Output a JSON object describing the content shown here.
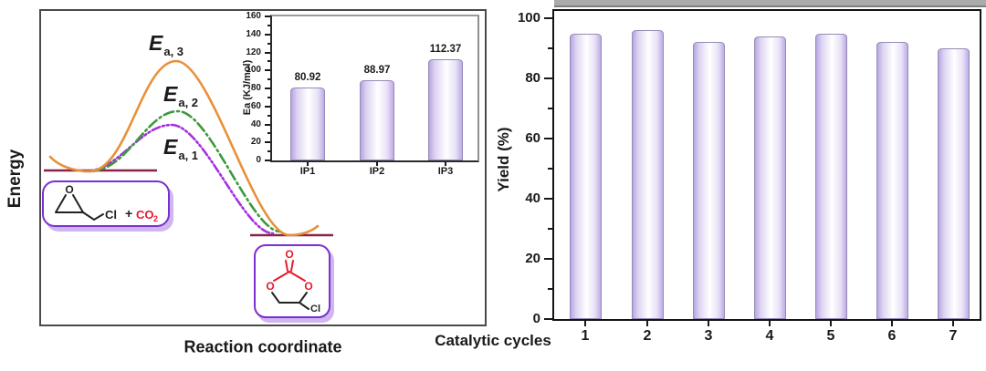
{
  "colors": {
    "orange_curve": "#e8913a",
    "green_curve": "#3c9a3c",
    "purple_curve": "#a431e0",
    "level_line": "#8b2346",
    "box_border": "#7b2fd2",
    "box_shadow": "#cfb6ee",
    "red_atom": "#e8192c",
    "bar_border": "#958cb5",
    "bar_fill_edge": "#b7a6e3",
    "gray_band": "#ababab"
  },
  "energy_diagram": {
    "y_axis_label": "Energy",
    "x_axis_label": "Reaction coordinate",
    "curves": [
      {
        "label_e": "E",
        "label_sub": "a, 1",
        "line_style": "dash-dot-dot"
      },
      {
        "label_e": "E",
        "label_sub": "a, 2",
        "line_style": "dash-dot"
      },
      {
        "label_e": "E",
        "label_sub": "a, 3",
        "line_style": "solid"
      }
    ],
    "reactant_box": {
      "atom_o": "O",
      "atom_cl": "Cl",
      "plus": "+",
      "co2": "CO",
      "co2_subscript": "2"
    },
    "product_box": {
      "carbonyl_o": "O",
      "ring_o_left": "O",
      "ring_o_right": "O",
      "atom_cl": "Cl"
    }
  },
  "chart_data": [
    {
      "id": "activation-energy-inset",
      "type": "bar",
      "categories": [
        "IP1",
        "IP2",
        "IP3"
      ],
      "values": [
        80.92,
        88.97,
        112.37
      ],
      "value_labels": [
        "80.92",
        "88.97",
        "112.37"
      ],
      "xlabel": "",
      "ylabel": "Ea (KJ/mol)",
      "ylim": [
        0,
        160
      ],
      "yticks": [
        0,
        20,
        40,
        60,
        80,
        100,
        120,
        140,
        160
      ],
      "grid": false,
      "legend": "none"
    },
    {
      "id": "recyclability",
      "type": "bar",
      "categories": [
        "1",
        "2",
        "3",
        "4",
        "5",
        "6",
        "7"
      ],
      "values": [
        95,
        96,
        92,
        94,
        95,
        92,
        90
      ],
      "xlabel": "Catalytic cycles",
      "ylabel": "Yield (%)",
      "ylim": [
        0,
        100
      ],
      "yticks": [
        0,
        20,
        40,
        60,
        80,
        100
      ],
      "grid": false,
      "legend": "none"
    }
  ]
}
